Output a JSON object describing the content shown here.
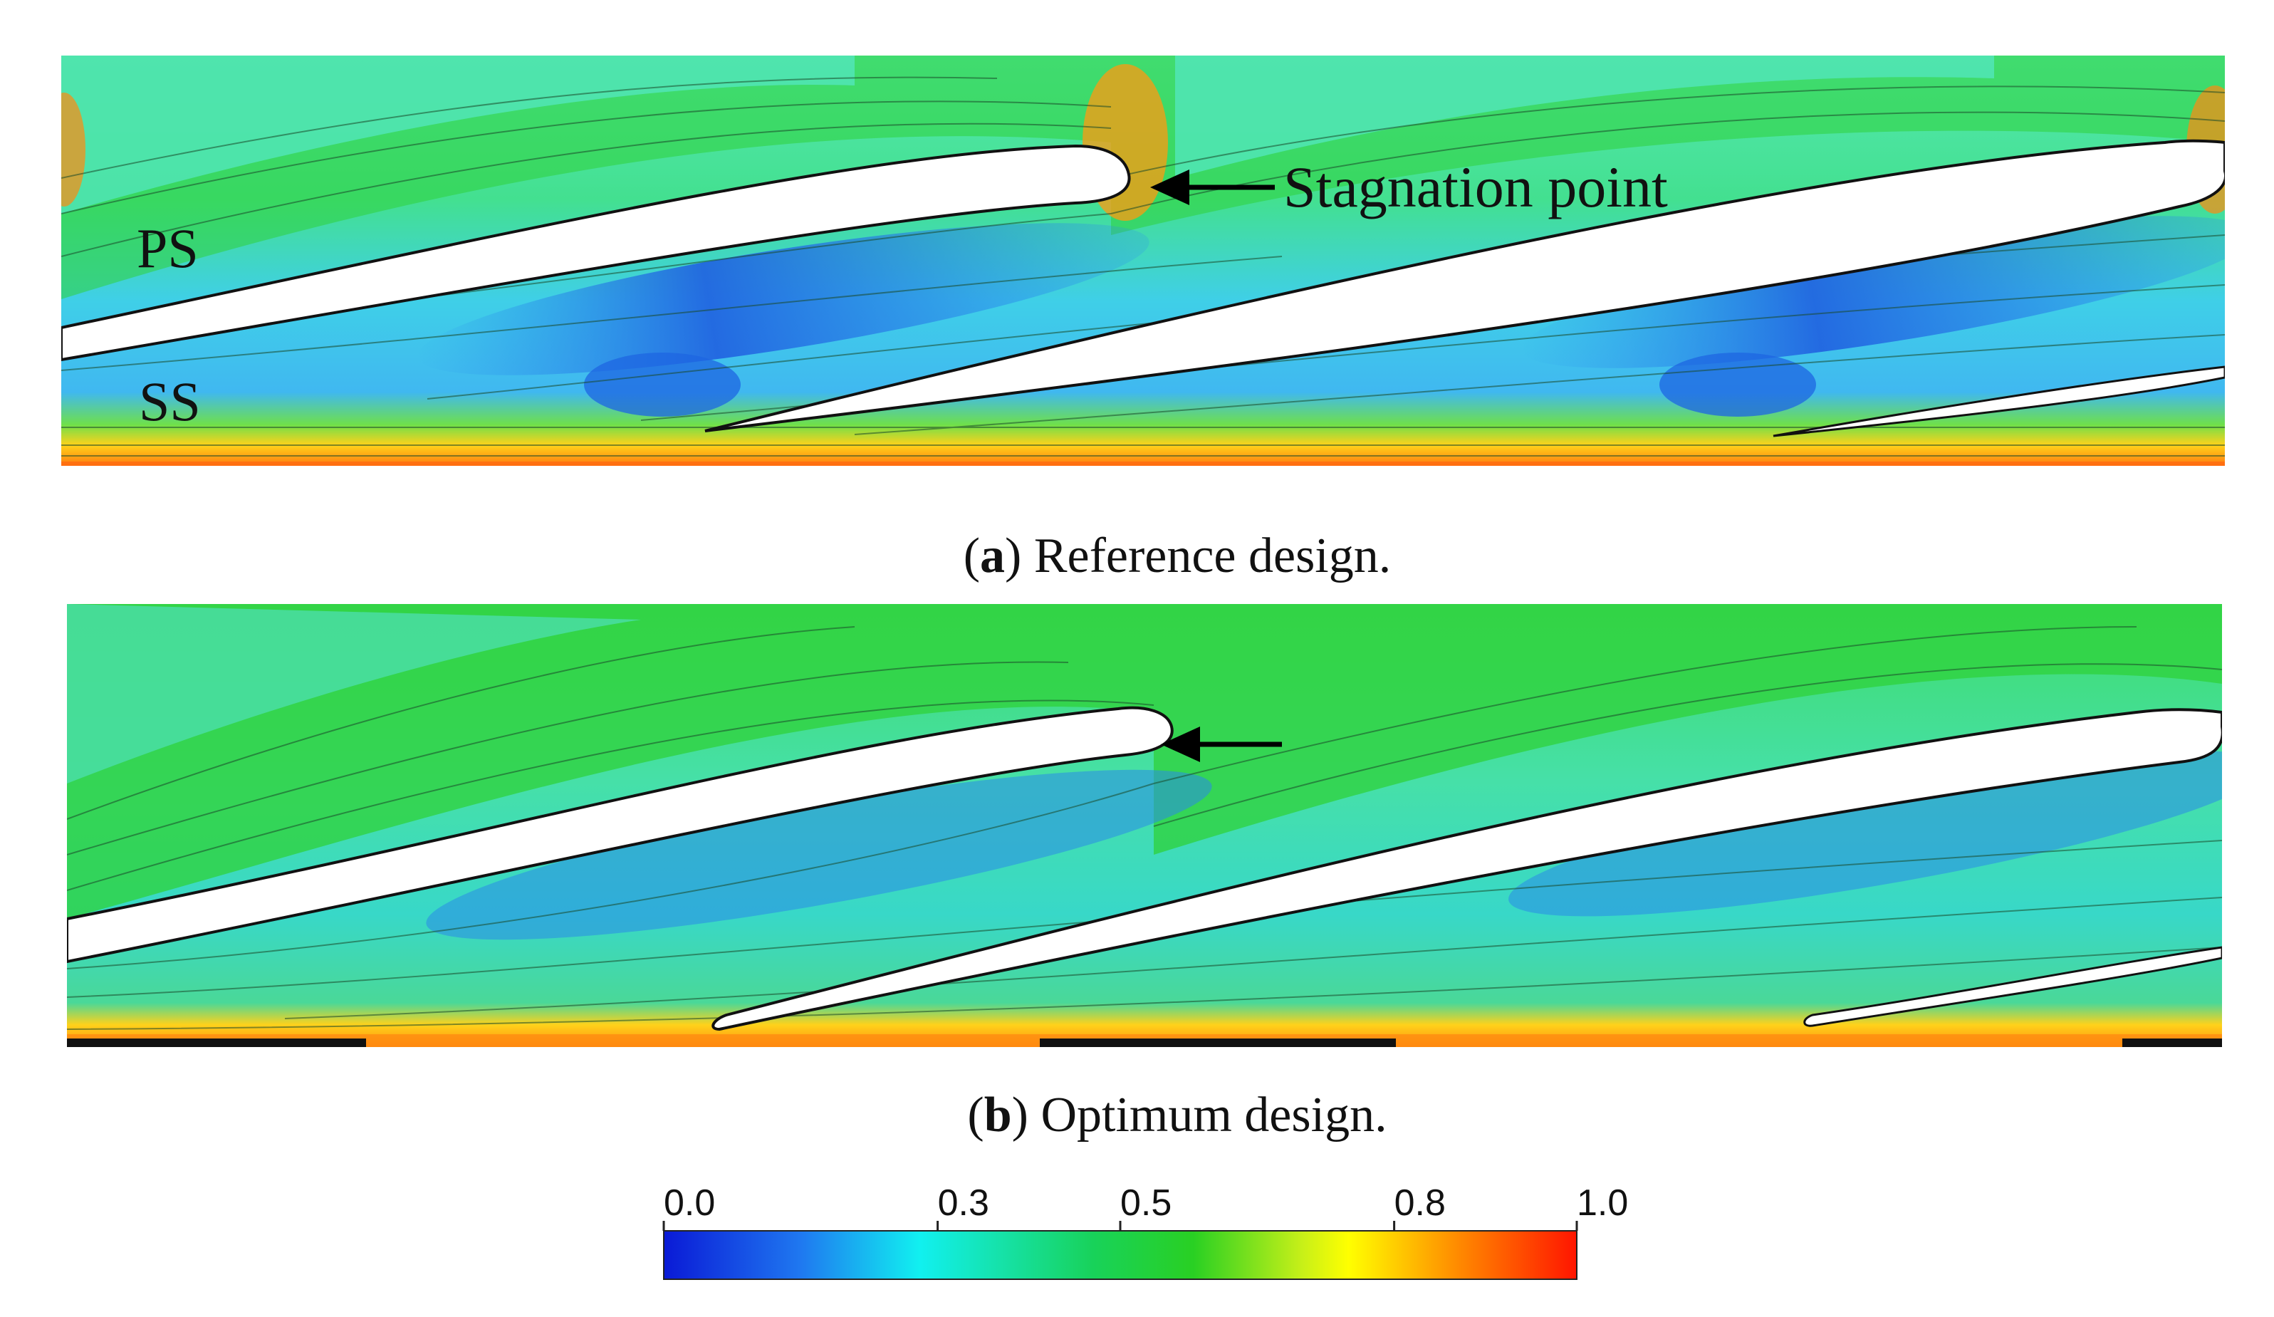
{
  "panel_a": {
    "caption_letter": "a",
    "caption_text": ") Reference design.",
    "labels": {
      "pressure_side": "PS",
      "suction_side": "SS",
      "stagnation": "Stagnation point"
    }
  },
  "panel_b": {
    "caption_letter": "b",
    "caption_text": ") Optimum design."
  },
  "colorbar": {
    "ticks": [
      "0.0",
      "0.3",
      "0.5",
      "0.8",
      "1.0"
    ],
    "tick_values": [
      0.0,
      0.3,
      0.5,
      0.8,
      1.0
    ],
    "range": [
      0.0,
      1.0
    ],
    "colors": [
      "#0a1ad6",
      "#1f78f0",
      "#11f0f0",
      "#18d25a",
      "#29d023",
      "#c8f018",
      "#ffff00",
      "#ff8a00",
      "#ff1500"
    ]
  },
  "caption_open_paren": "("
}
